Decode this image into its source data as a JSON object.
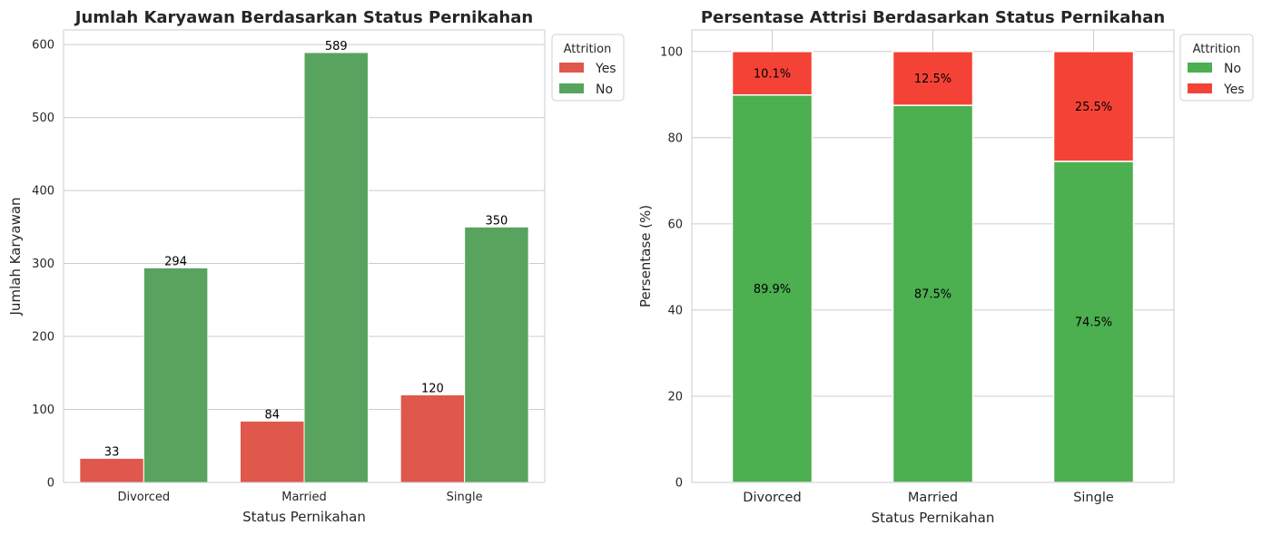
{
  "chart_data": [
    {
      "type": "bar",
      "title": "Jumlah Karyawan Berdasarkan Status Pernikahan",
      "xlabel": "Status Pernikahan",
      "ylabel": "Jumlah Karyawan",
      "categories": [
        "Divorced",
        "Married",
        "Single"
      ],
      "series": [
        {
          "name": "Yes",
          "values": [
            33,
            84,
            120
          ],
          "color": "#e0574c"
        },
        {
          "name": "No",
          "values": [
            294,
            589,
            350
          ],
          "color": "#58a45e"
        }
      ],
      "ylim": [
        0,
        620
      ],
      "yticks": [
        0,
        100,
        200,
        300,
        400,
        500,
        600
      ],
      "legend": {
        "title": "Attrition",
        "placement": "outside-top-right"
      },
      "grid": true
    },
    {
      "type": "bar",
      "stacked": true,
      "title": "Persentase Attrisi Berdasarkan Status Pernikahan",
      "xlabel": "Status Pernikahan",
      "ylabel": "Persentase (%)",
      "categories": [
        "Divorced",
        "Married",
        "Single"
      ],
      "series": [
        {
          "name": "No",
          "values": [
            89.9,
            87.5,
            74.5
          ],
          "labels": [
            "89.9%",
            "87.5%",
            "74.5%"
          ],
          "color": "#4caf50"
        },
        {
          "name": "Yes",
          "values": [
            10.1,
            12.5,
            25.5
          ],
          "labels": [
            "10.1%",
            "12.5%",
            "25.5%"
          ],
          "color": "#f44336"
        }
      ],
      "ylim": [
        0,
        105
      ],
      "yticks": [
        0,
        20,
        40,
        60,
        80,
        100
      ],
      "legend": {
        "title": "Attrition",
        "placement": "outside-top-right"
      },
      "grid": true
    }
  ]
}
